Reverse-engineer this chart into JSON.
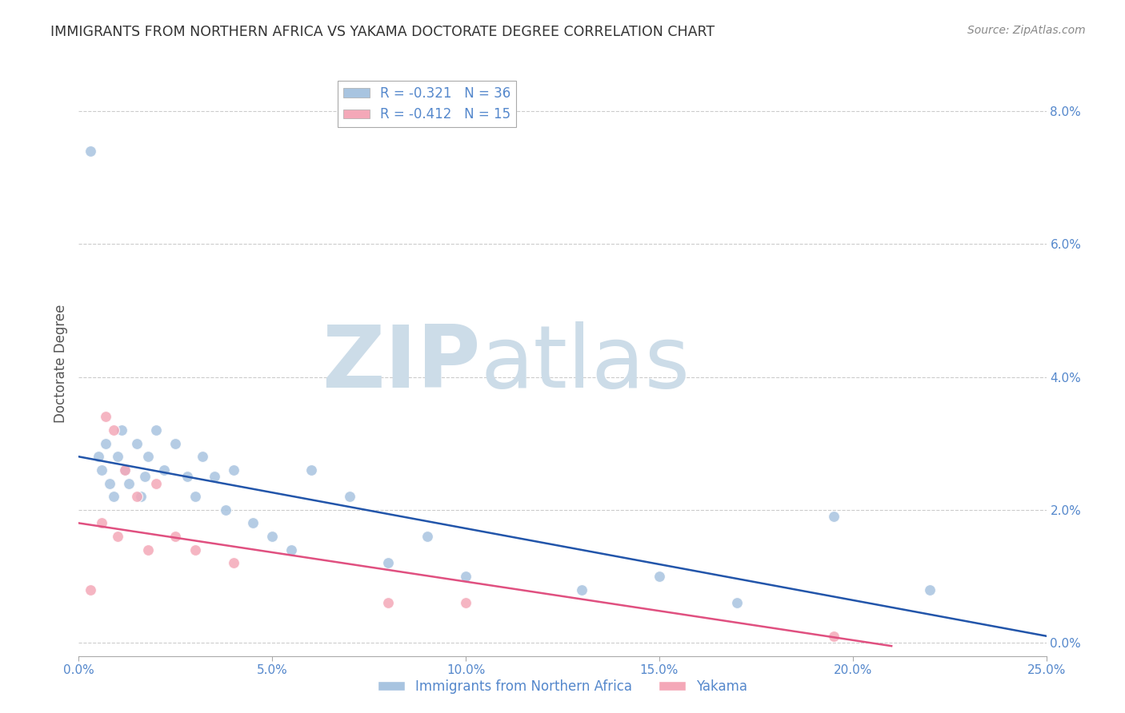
{
  "title": "IMMIGRANTS FROM NORTHERN AFRICA VS YAKAMA DOCTORATE DEGREE CORRELATION CHART",
  "source": "Source: ZipAtlas.com",
  "ylabel": "Doctorate Degree",
  "watermark_zip": "ZIP",
  "watermark_atlas": "atlas",
  "xlim": [
    0.0,
    0.25
  ],
  "ylim": [
    -0.002,
    0.086
  ],
  "xtick_vals": [
    0.0,
    0.05,
    0.1,
    0.15,
    0.2,
    0.25
  ],
  "xtick_labels": [
    "0.0%",
    "5.0%",
    "10.0%",
    "15.0%",
    "20.0%",
    "25.0%"
  ],
  "ytick_vals_right": [
    0.0,
    0.02,
    0.04,
    0.06,
    0.08
  ],
  "ytick_labels_right": [
    "0.0%",
    "2.0%",
    "4.0%",
    "6.0%",
    "8.0%"
  ],
  "blue_R": -0.321,
  "blue_N": 36,
  "pink_R": -0.412,
  "pink_N": 15,
  "blue_color": "#a8c4e0",
  "pink_color": "#f4a8b8",
  "blue_line_color": "#2255aa",
  "pink_line_color": "#e05080",
  "legend_label_blue": "Immigrants from Northern Africa",
  "legend_label_pink": "Yakama",
  "blue_scatter_x": [
    0.003,
    0.005,
    0.006,
    0.007,
    0.008,
    0.009,
    0.01,
    0.011,
    0.012,
    0.013,
    0.015,
    0.016,
    0.017,
    0.018,
    0.02,
    0.022,
    0.025,
    0.028,
    0.03,
    0.032,
    0.035,
    0.038,
    0.04,
    0.045,
    0.05,
    0.055,
    0.06,
    0.07,
    0.08,
    0.09,
    0.1,
    0.13,
    0.15,
    0.17,
    0.195,
    0.22
  ],
  "blue_scatter_y": [
    0.074,
    0.028,
    0.026,
    0.03,
    0.024,
    0.022,
    0.028,
    0.032,
    0.026,
    0.024,
    0.03,
    0.022,
    0.025,
    0.028,
    0.032,
    0.026,
    0.03,
    0.025,
    0.022,
    0.028,
    0.025,
    0.02,
    0.026,
    0.018,
    0.016,
    0.014,
    0.026,
    0.022,
    0.012,
    0.016,
    0.01,
    0.008,
    0.01,
    0.006,
    0.019,
    0.008
  ],
  "pink_scatter_x": [
    0.003,
    0.006,
    0.007,
    0.009,
    0.01,
    0.012,
    0.015,
    0.018,
    0.02,
    0.025,
    0.03,
    0.04,
    0.08,
    0.1,
    0.195
  ],
  "pink_scatter_y": [
    0.008,
    0.018,
    0.034,
    0.032,
    0.016,
    0.026,
    0.022,
    0.014,
    0.024,
    0.016,
    0.014,
    0.012,
    0.006,
    0.006,
    0.001
  ],
  "blue_line_x0": 0.0,
  "blue_line_x1": 0.25,
  "blue_line_y0": 0.028,
  "blue_line_y1": 0.001,
  "pink_line_x0": 0.0,
  "pink_line_x1": 0.21,
  "pink_line_y0": 0.018,
  "pink_line_y1": -0.0005,
  "background_color": "#ffffff",
  "grid_color": "#cccccc",
  "title_color": "#333333",
  "tick_label_color": "#5588cc",
  "ylabel_color": "#555555",
  "watermark_color": "#ccdce8",
  "marker_size": 100
}
